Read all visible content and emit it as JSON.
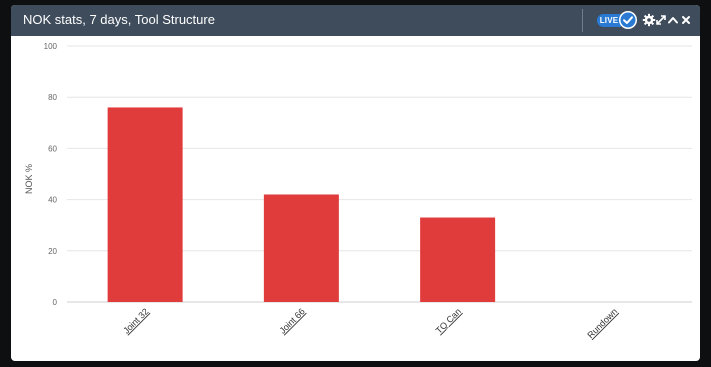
{
  "widget": {
    "title": "NOK stats, 7 days, Tool Structure",
    "live_label": "LIVE",
    "icons": [
      "check-icon",
      "gear-icon",
      "expand-icon",
      "collapse-icon",
      "close-icon"
    ]
  },
  "colors": {
    "header_bg": "#3f4c5c",
    "bar": "#e03c3c",
    "live_badge": "#2a7ad4",
    "grid": "#e6e6e6"
  },
  "chart_data": {
    "type": "bar",
    "title": "",
    "ylabel": "NOK %",
    "xlabel": "",
    "categories": [
      "Joint 32",
      "Joint 66",
      "TQ Can",
      "Rundown"
    ],
    "values": [
      76,
      42,
      33,
      0
    ],
    "ylim": [
      0,
      100
    ],
    "yticks": [
      0,
      20,
      40,
      60,
      80,
      100
    ],
    "grid": true,
    "legend": "none"
  }
}
